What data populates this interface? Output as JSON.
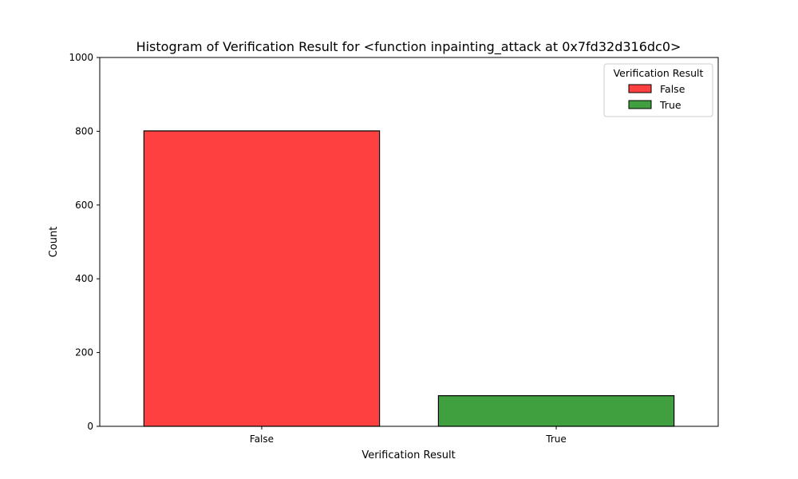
{
  "chart_data": {
    "type": "bar",
    "title": "Histogram of Verification Result for <function inpainting_attack at 0x7fd32d316dc0>",
    "xlabel": "Verification Result",
    "ylabel": "Count",
    "categories": [
      "False",
      "True"
    ],
    "values": [
      801,
      83
    ],
    "colors": [
      "#ff4040",
      "#40a040"
    ],
    "ylim": [
      0,
      1000
    ],
    "yticks": [
      0,
      200,
      400,
      600,
      800,
      1000
    ],
    "grid": false,
    "legend": {
      "title": "Verification Result",
      "placement": "top-right",
      "entries": [
        {
          "label": "False",
          "color": "#ff4040"
        },
        {
          "label": "True",
          "color": "#40a040"
        }
      ]
    }
  }
}
